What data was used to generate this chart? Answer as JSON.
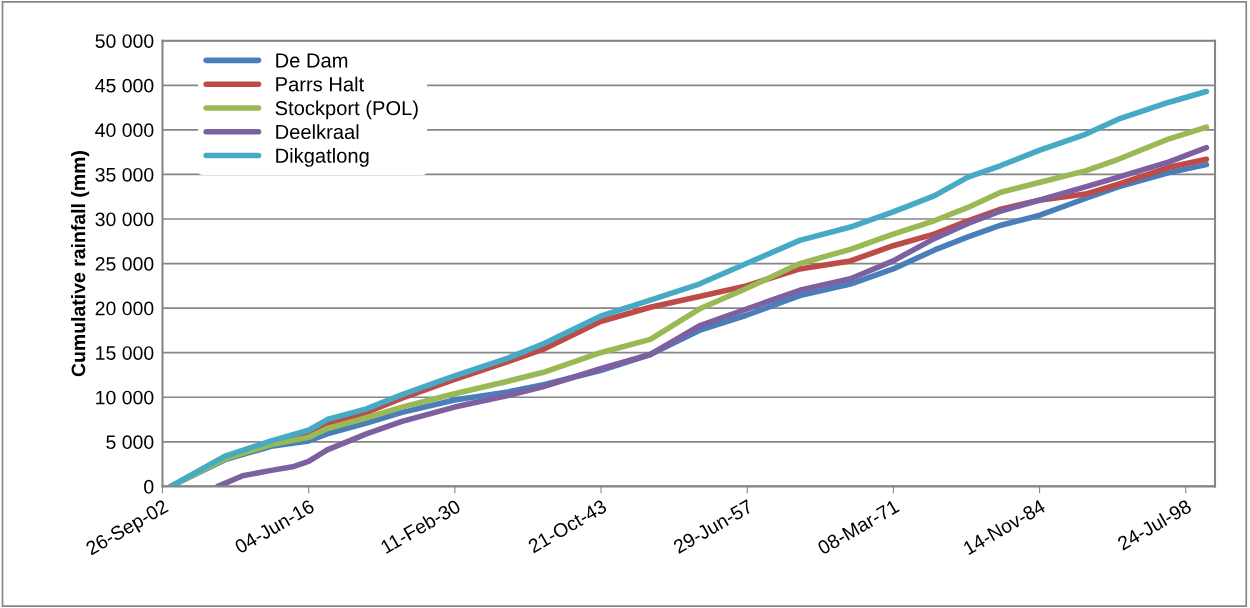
{
  "chart_data": {
    "type": "line",
    "ylabel": "Cumulative rainfall (mm)",
    "x": [
      "1903-07",
      "1908-08",
      "1912-12",
      "1916-06",
      "1918-03",
      "1921-11",
      "1925-03",
      "1930-02",
      "1935-02",
      "1938-06",
      "1943-10",
      "1948-06",
      "1953-01",
      "1957-06",
      "1962-06",
      "1967-03",
      "1971-03",
      "1975-01",
      "1978-03",
      "1981-04",
      "1984-11",
      "1989-03",
      "1992-04",
      "1997-01",
      "2000-07"
    ],
    "series": [
      {
        "name": "De Dam",
        "color": "#4a7ebb",
        "values": [
          0,
          3000,
          4500,
          5100,
          5900,
          7100,
          8300,
          9700,
          10600,
          11400,
          13000,
          14800,
          17500,
          19200,
          21400,
          22700,
          24400,
          26500,
          28000,
          29300,
          30400,
          32300,
          33600,
          35200,
          36100
        ]
      },
      {
        "name": "Parrs Halt",
        "color": "#be4b48",
        "values": [
          null,
          null,
          5000,
          6000,
          6900,
          8300,
          9900,
          12000,
          14000,
          15400,
          18500,
          20100,
          21300,
          22500,
          24400,
          25300,
          27000,
          28300,
          29800,
          31100,
          32100,
          32800,
          33900,
          35800,
          36700
        ]
      },
      {
        "name": "Stockport (POL)",
        "color": "#98b954",
        "values": [
          0,
          3100,
          4700,
          5500,
          6500,
          7700,
          8900,
          10400,
          11800,
          12800,
          15000,
          16500,
          19900,
          22200,
          25000,
          26600,
          28300,
          29800,
          31300,
          33000,
          34100,
          35400,
          36700,
          39000,
          40300
        ]
      },
      {
        "name": "Deelkraal",
        "color": "#7d60a0",
        "x": [
          "1907-12",
          "1910-04",
          "1912-12",
          "1914-12",
          "1916-06",
          "1918-03",
          "1921-11",
          "1925-03",
          "1930-02",
          "1935-02",
          "1938-06",
          "1943-10",
          "1948-06",
          "1953-01",
          "1957-06",
          "1962-06",
          "1967-03",
          "1971-03",
          "1975-01",
          "1978-03",
          "1981-04",
          "1984-11",
          "1989-03",
          "1992-04",
          "1997-01",
          "2000-07"
        ],
        "values": [
          0,
          1200,
          1800,
          2200,
          2800,
          4100,
          5900,
          7300,
          8900,
          10200,
          11200,
          13200,
          14800,
          18000,
          19900,
          22000,
          23300,
          25300,
          27800,
          29500,
          30900,
          32100,
          33600,
          34700,
          36400,
          38000
        ]
      },
      {
        "name": "Dikgatlong",
        "color": "#46aac5",
        "values": [
          0,
          3400,
          5100,
          6300,
          7500,
          8700,
          10300,
          12400,
          14400,
          16000,
          19100,
          20900,
          22700,
          25000,
          27600,
          29100,
          30800,
          32600,
          34700,
          36000,
          37700,
          39500,
          41200,
          43100,
          44300
        ]
      }
    ],
    "xlim": [
      "1902-09-26",
      "2001-04-20"
    ],
    "xticks": [
      {
        "value": "1902-09-26",
        "label": "26-Sep-02"
      },
      {
        "value": "1916-06-04",
        "label": "04-Jun-16"
      },
      {
        "value": "1930-02-11",
        "label": "11-Feb-30"
      },
      {
        "value": "1943-10-21",
        "label": "21-Oct-43"
      },
      {
        "value": "1957-06-29",
        "label": "29-Jun-57"
      },
      {
        "value": "1971-03-08",
        "label": "08-Mar-71"
      },
      {
        "value": "1984-11-14",
        "label": "14-Nov-84"
      },
      {
        "value": "1998-07-24",
        "label": "24-Jul-98"
      }
    ],
    "ylim": [
      0,
      50000
    ],
    "yticks": [
      0,
      {
        "value": 5000,
        "label": "5 000"
      },
      {
        "value": 10000,
        "label": "10 000"
      },
      {
        "value": 15000,
        "label": "15 000"
      },
      {
        "value": 20000,
        "label": "20 000"
      },
      {
        "value": 25000,
        "label": "25 000"
      },
      {
        "value": 30000,
        "label": "30 000"
      },
      {
        "value": 35000,
        "label": "35 000"
      },
      {
        "value": 40000,
        "label": "40 000"
      },
      {
        "value": 45000,
        "label": "45 000"
      },
      {
        "value": 50000,
        "label": "50 000"
      }
    ],
    "grid": "y",
    "legend": "top left",
    "marker": "none",
    "line_style": "solid"
  }
}
